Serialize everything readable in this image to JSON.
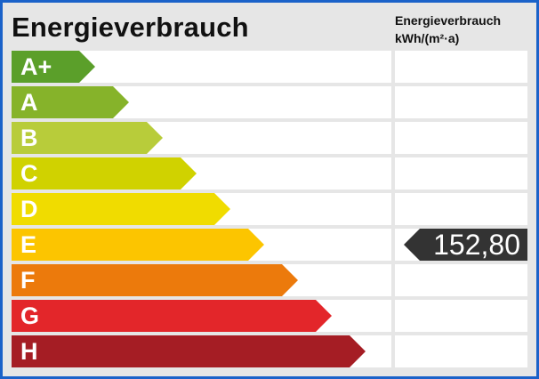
{
  "header": {
    "title": "Energieverbrauch",
    "column_title_line1": "Energieverbrauch",
    "column_title_line2": "kWh/(m²·a)"
  },
  "classes": [
    {
      "label": "A+",
      "color": "#5b9f2a"
    },
    {
      "label": "A",
      "color": "#86b32a"
    },
    {
      "label": "B",
      "color": "#b8cc3a"
    },
    {
      "label": "C",
      "color": "#d0d200"
    },
    {
      "label": "D",
      "color": "#f0dc00"
    },
    {
      "label": "E",
      "color": "#fcc500"
    },
    {
      "label": "F",
      "color": "#ec7a0c"
    },
    {
      "label": "G",
      "color": "#e3262a"
    },
    {
      "label": "H",
      "color": "#a51d24"
    }
  ],
  "value": {
    "text": "152,80",
    "class": "E",
    "color": "#333333"
  }
}
